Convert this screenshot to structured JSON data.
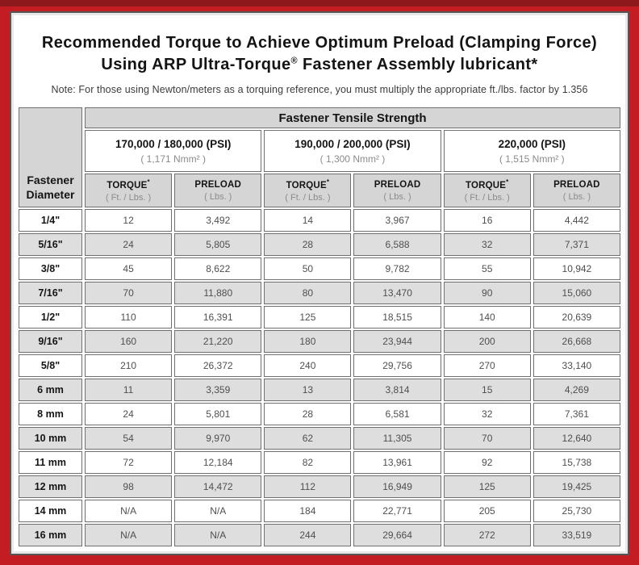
{
  "colors": {
    "frame_red": "#C31C22",
    "top_strip_red": "#8D191D",
    "header_gray": "#D5D5D5",
    "row_shade_gray": "#DEDEDE",
    "cell_border_gray": "#6F6F6F"
  },
  "header": {
    "title_line1": "Recommended Torque to Achieve Optimum Preload (Clamping Force)",
    "title_line2_prefix": "Using ARP Ultra-Torque",
    "title_line2_sup": "®",
    "title_line2_suffix": " Fastener Assembly lubricant*",
    "note": "Note: For those using Newton/meters as a torquing reference, you must multiply the appropriate ft./lbs. factor by 1.356"
  },
  "table": {
    "corner_label_line1": "Fastener",
    "corner_label_line2": "Diameter",
    "tensile_header": "Fastener Tensile Strength",
    "strength_groups": [
      {
        "psi": "170,000 / 180,000 (PSI)",
        "nmm": "( 1,171 Nmm² )"
      },
      {
        "psi": "190,000 / 200,000 (PSI)",
        "nmm": "( 1,300 Nmm² )"
      },
      {
        "psi": "220,000 (PSI)",
        "nmm": "( 1,515 Nmm² )"
      }
    ],
    "col_headers": {
      "torque_label": "TORQUE",
      "torque_sup": "*",
      "torque_unit": "( Ft. / Lbs. )",
      "preload_label": "PRELOAD",
      "preload_unit": "( Lbs. )"
    },
    "rows": [
      {
        "diameter": "1/4\"",
        "values": [
          "12",
          "3,492",
          "14",
          "3,967",
          "16",
          "4,442"
        ]
      },
      {
        "diameter": "5/16\"",
        "values": [
          "24",
          "5,805",
          "28",
          "6,588",
          "32",
          "7,371"
        ]
      },
      {
        "diameter": "3/8\"",
        "values": [
          "45",
          "8,622",
          "50",
          "9,782",
          "55",
          "10,942"
        ]
      },
      {
        "diameter": "7/16\"",
        "values": [
          "70",
          "11,880",
          "80",
          "13,470",
          "90",
          "15,060"
        ]
      },
      {
        "diameter": "1/2\"",
        "values": [
          "110",
          "16,391",
          "125",
          "18,515",
          "140",
          "20,639"
        ]
      },
      {
        "diameter": "9/16\"",
        "values": [
          "160",
          "21,220",
          "180",
          "23,944",
          "200",
          "26,668"
        ]
      },
      {
        "diameter": "5/8\"",
        "values": [
          "210",
          "26,372",
          "240",
          "29,756",
          "270",
          "33,140"
        ]
      },
      {
        "diameter": "6 mm",
        "values": [
          "11",
          "3,359",
          "13",
          "3,814",
          "15",
          "4,269"
        ]
      },
      {
        "diameter": "8 mm",
        "values": [
          "24",
          "5,801",
          "28",
          "6,581",
          "32",
          "7,361"
        ]
      },
      {
        "diameter": "10 mm",
        "values": [
          "54",
          "9,970",
          "62",
          "11,305",
          "70",
          "12,640"
        ]
      },
      {
        "diameter": "11 mm",
        "values": [
          "72",
          "12,184",
          "82",
          "13,961",
          "92",
          "15,738"
        ]
      },
      {
        "diameter": "12 mm",
        "values": [
          "98",
          "14,472",
          "112",
          "16,949",
          "125",
          "19,425"
        ]
      },
      {
        "diameter": "14 mm",
        "values": [
          "N/A",
          "N/A",
          "184",
          "22,771",
          "205",
          "25,730"
        ]
      },
      {
        "diameter": "16 mm",
        "values": [
          "N/A",
          "N/A",
          "244",
          "29,664",
          "272",
          "33,519"
        ]
      }
    ]
  }
}
